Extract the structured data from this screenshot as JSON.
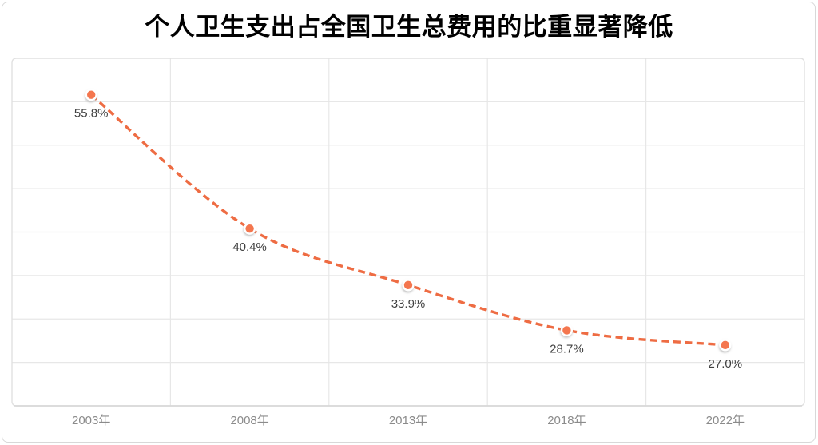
{
  "page": {
    "background": "#ffffff",
    "card_border_color": "#d8d8d8"
  },
  "chart_data": {
    "type": "line",
    "title": "个人卫生支出占全国卫生总费用的比重显著降低",
    "categories": [
      "2003年",
      "2008年",
      "2013年",
      "2018年",
      "2022年"
    ],
    "values": [
      55.8,
      40.4,
      33.9,
      28.7,
      27.0
    ],
    "point_labels": [
      "55.8%",
      "40.4%",
      "33.9%",
      "28.7%",
      "27.0%"
    ],
    "ylim": [
      20,
      60
    ],
    "grid_step": 5,
    "grid": "both",
    "legend_position": "none",
    "smooth": true,
    "line_style": "dashed",
    "colors": {
      "line": "#EE6C43",
      "marker_fill": "#F4764E",
      "marker_ring": "#ffffff",
      "point_label": "#3F3F3F",
      "axis_tick_label": "#8B8B8B",
      "gridline": "#E7E7E7",
      "plot_border": "#E1E1E1",
      "axis_line": "#D6D6D6",
      "title": "#000000"
    }
  }
}
